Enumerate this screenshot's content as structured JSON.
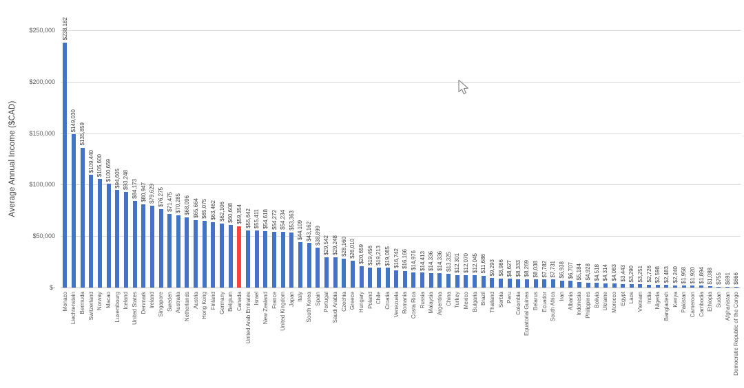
{
  "chart_data": {
    "type": "bar",
    "title": "",
    "xlabel": "",
    "ylabel": "Average Annual Income ($CAD)",
    "ylim": [
      0,
      250000
    ],
    "grid": true,
    "legend_position": "none",
    "bar_color": "#4472C4",
    "highlight": {
      "category": "Canada",
      "index": 20,
      "color": "#F94343"
    },
    "yticks": [
      {
        "value": 250000,
        "label": "$250,000"
      },
      {
        "value": 200000,
        "label": "$200,000"
      },
      {
        "value": 150000,
        "label": "$150,000"
      },
      {
        "value": 100000,
        "label": "$100,000"
      },
      {
        "value": 50000,
        "label": "$50,000"
      },
      {
        "value": 0,
        "label": "$-"
      }
    ],
    "value_label_format": "$#,##0",
    "categories": [
      "Monaco",
      "Liechtenstein",
      "Bermuda",
      "Switzerland",
      "Norway",
      "Macao",
      "Luxembourg",
      "Iceland",
      "United States",
      "Denmark",
      "Ireland",
      "Singapore",
      "Sweden",
      "Australia",
      "Netherlands",
      "Austria",
      "Hong Kong",
      "Finland",
      "Germany",
      "Belgium",
      "Canada",
      "United Arab Emirates",
      "Israel",
      "New Zealand",
      "France",
      "United Kingdom",
      "Japan",
      "Italy",
      "South Korea",
      "Spain",
      "Portugal",
      "Saudi Arabia",
      "Czechia",
      "Greece",
      "Hungary",
      "Poland",
      "Chile",
      "Croatia",
      "Venezuela",
      "Romania",
      "Costa Rica",
      "Russia",
      "Malaysia",
      "Argentina",
      "China",
      "Turkey",
      "Mexico",
      "Bulgaria",
      "Brazil",
      "Thailand",
      "Serbia",
      "Peru",
      "Colombia",
      "Equatorial Guinea",
      "Belarus",
      "Ecuador",
      "South Africa",
      "Iran",
      "Albania",
      "Indonesia",
      "Philippines",
      "Bolivia",
      "Ukraine",
      "Morocco",
      "Egypt",
      "Laos",
      "Vietnam",
      "India",
      "Nigeria",
      "Bangladesh",
      "Kenya",
      "Pakistan",
      "Cameroon",
      "Cambodia",
      "Ethiopia",
      "Sudan",
      "Afghanistan",
      "Democratic Republic of the Congo"
    ],
    "values": [
      238182,
      149030,
      135859,
      109440,
      105600,
      100659,
      94605,
      93248,
      84173,
      80947,
      79629,
      76275,
      71475,
      70285,
      68096,
      65664,
      65075,
      63462,
      62106,
      60608,
      59354,
      55642,
      55411,
      54618,
      54272,
      54234,
      53363,
      44109,
      43162,
      38899,
      29542,
      29248,
      28160,
      26010,
      20659,
      19456,
      19213,
      19085,
      16742,
      16166,
      14976,
      14413,
      14336,
      14336,
      13325,
      12301,
      12070,
      12045,
      11686,
      9293,
      8986,
      8627,
      8333,
      8269,
      8038,
      7782,
      7731,
      6938,
      6707,
      5184,
      4928,
      4518,
      4314,
      4083,
      3443,
      3290,
      3251,
      2726,
      2598,
      2483,
      2240,
      1958,
      1920,
      1894,
      1088,
      755,
      691,
      666
    ]
  }
}
